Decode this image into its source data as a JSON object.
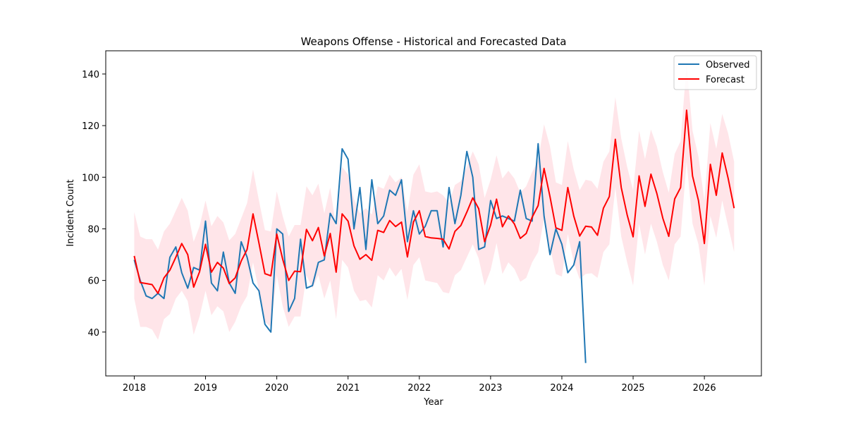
{
  "chart_data": {
    "type": "line",
    "title": "Weapons Offense - Historical and Forecasted Data",
    "xlabel": "Year",
    "ylabel": "Incident Count",
    "xlim": [
      2017.6,
      2026.8
    ],
    "ylim": [
      23,
      149
    ],
    "x_ticks": [
      "2018",
      "2019",
      "2020",
      "2021",
      "2022",
      "2023",
      "2024",
      "2025",
      "2026"
    ],
    "y_ticks": [
      "40",
      "60",
      "80",
      "100",
      "120",
      "140"
    ],
    "grid": false,
    "legend_position": "top-right",
    "series": [
      {
        "name": "Observed",
        "color": "#1f77b4",
        "start": "2018-01",
        "values": [
          68,
          60,
          54,
          53,
          55,
          53,
          69,
          73,
          63,
          57,
          65,
          64,
          83,
          59,
          56,
          71,
          59,
          55,
          75,
          69,
          59,
          56,
          43,
          40,
          80,
          78,
          48,
          53,
          76,
          57,
          58,
          67,
          68,
          86,
          82,
          111,
          107,
          80,
          96,
          72,
          99,
          82,
          85,
          95,
          93,
          99,
          75,
          87,
          78,
          81,
          87,
          87,
          73,
          96,
          82,
          93,
          110,
          100,
          72,
          73,
          91,
          84,
          85,
          84,
          83,
          95,
          84,
          83,
          113,
          85,
          70,
          80,
          74,
          63,
          66,
          75,
          28
        ]
      },
      {
        "name": "Forecast",
        "color": "#ff0000",
        "start": "2018-01",
        "values": [
          69.5,
          59.2,
          58.8,
          58.4,
          55,
          61,
          64,
          69,
          74.3,
          70,
          57.4,
          63.4,
          74,
          63.2,
          67,
          64.8,
          58.8,
          61,
          67.5,
          72,
          85.8,
          74.5,
          62.6,
          61.8,
          78,
          68.2,
          60,
          63.6,
          63.4,
          79.8,
          75.4,
          80.5,
          69.5,
          78.2,
          63.2,
          85.8,
          83,
          73.4,
          68.2,
          70,
          67.8,
          79.4,
          78.6,
          83.2,
          80.9,
          82.6,
          69.1,
          82.6,
          87,
          77,
          76.5,
          76.3,
          76,
          72.2,
          79,
          81.3,
          86.5,
          92,
          87.8,
          75,
          81.5,
          91.5,
          80.8,
          85,
          81.9,
          76.3,
          78.2,
          84.5,
          89,
          103.4,
          92.5,
          80.4,
          79.4,
          96,
          85,
          77.2,
          81,
          80.7,
          77.5,
          88,
          92.5,
          114.7,
          96,
          85.4,
          76.9,
          100.5,
          88.7,
          101.2,
          93.7,
          84.1,
          77.1,
          91.6,
          96,
          126,
          100.5,
          91,
          74.3,
          105,
          93,
          109.4,
          99.6,
          88
        ],
        "band_lower": [
          53,
          42,
          42,
          41,
          37,
          45,
          47,
          53,
          56,
          52,
          39,
          46,
          56,
          46.5,
          50,
          48,
          40,
          44,
          50,
          54,
          67,
          56,
          44,
          42,
          62,
          50,
          42,
          46,
          46,
          62,
          57,
          62,
          53,
          60,
          45,
          68,
          65,
          56,
          52,
          52.5,
          49.5,
          62,
          60,
          65,
          61.5,
          64.5,
          52.5,
          66,
          69,
          60,
          59.5,
          59,
          55.5,
          55,
          62,
          64,
          69,
          74,
          68.5,
          58,
          64,
          74.5,
          62.5,
          67,
          64.5,
          59.5,
          61,
          67,
          71,
          84,
          73,
          62.5,
          61.5,
          78,
          67,
          60.5,
          62.5,
          62.8,
          61,
          71,
          74,
          96,
          77,
          67,
          58,
          82,
          70,
          82,
          75,
          66,
          60,
          74,
          77,
          106,
          82,
          74,
          58,
          85,
          76.5,
          91,
          81,
          71
        ],
        "band_upper": [
          86.5,
          77,
          76,
          76,
          72,
          79,
          82,
          87,
          92,
          87,
          75,
          81,
          91,
          81,
          85,
          82.5,
          75.5,
          78,
          84,
          90,
          103,
          91,
          79.5,
          79,
          94.5,
          85,
          77,
          81.5,
          81.5,
          96.5,
          93,
          97.5,
          86,
          96,
          80.5,
          104,
          101,
          91.5,
          86,
          88,
          85.5,
          96.5,
          95.5,
          101,
          98,
          100,
          86.5,
          101,
          105,
          94.5,
          94,
          94.5,
          93,
          90,
          97,
          98.5,
          104,
          110,
          105,
          92,
          99,
          108.5,
          99.5,
          102.5,
          99.5,
          94,
          96.5,
          102,
          106.5,
          120.5,
          112,
          98,
          97,
          114,
          103,
          95,
          99,
          98.5,
          95.5,
          106,
          110,
          131,
          115,
          104,
          95,
          118,
          107,
          118.5,
          112,
          102,
          94,
          109,
          114,
          144,
          118,
          108,
          91,
          121,
          111,
          124.5,
          117,
          106
        ]
      }
    ]
  }
}
